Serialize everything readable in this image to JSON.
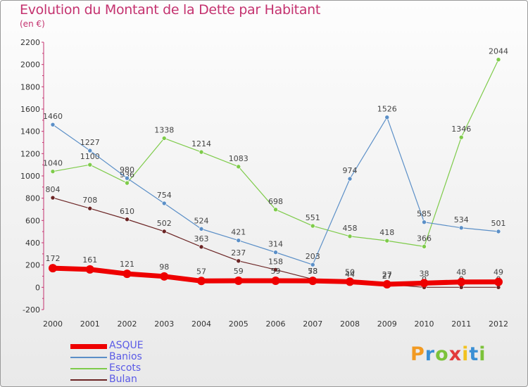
{
  "chart_data": {
    "type": "line",
    "title": "Evolution du Montant de la Dette par Habitant",
    "subtitle": "(en €)",
    "xlabel": "",
    "ylabel": "",
    "ylim": [
      -200,
      2200
    ],
    "yticks": [
      -200,
      0,
      200,
      400,
      600,
      800,
      1000,
      1200,
      1400,
      1600,
      1800,
      2000,
      2200
    ],
    "categories": [
      "2000",
      "2001",
      "2002",
      "2003",
      "2004",
      "2005",
      "2006",
      "2007",
      "2008",
      "2009",
      "2010",
      "2011",
      "2012"
    ],
    "grid": false,
    "legend_position": "bottom-left",
    "series": [
      {
        "name": "ASQUE",
        "color": "#ee0000",
        "values": [
          172,
          161,
          121,
          98,
          57,
          59,
          59,
          58,
          50,
          27,
          38,
          48,
          49
        ]
      },
      {
        "name": "Banios",
        "color": "#5b8fc7",
        "values": [
          1460,
          1227,
          980,
          754,
          524,
          421,
          314,
          203,
          974,
          1526,
          585,
          534,
          501
        ]
      },
      {
        "name": "Escots",
        "color": "#7ecb4a",
        "values": [
          1040,
          1100,
          936,
          1338,
          1214,
          1083,
          698,
          551,
          458,
          418,
          366,
          1346,
          2044
        ]
      },
      {
        "name": "Bulan",
        "color": "#6b2424",
        "values": [
          804,
          708,
          610,
          502,
          363,
          237,
          158,
          73,
          44,
          27,
          0,
          0,
          0
        ]
      }
    ]
  },
  "brand": {
    "letters": [
      "P",
      "r",
      "o",
      "x",
      "i",
      "t",
      "i"
    ],
    "colors": [
      "#f29a22",
      "#3a8fd4",
      "#7cc23a",
      "#e23b3b",
      "#f2c21f",
      "#3a8fd4",
      "#7cc23a"
    ]
  }
}
